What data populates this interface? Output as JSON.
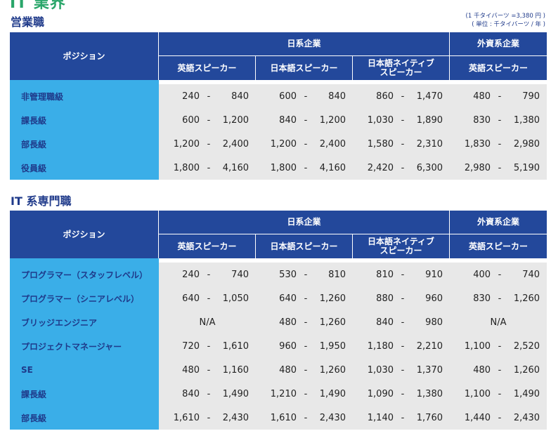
{
  "header": {
    "top_title": "IT 業界",
    "sales_title": "営業職",
    "it_title": "IT 系専門職",
    "note_line1": "(1 千タイバーツ =3,380 円 )",
    "note_line2": "( 単位 : 千タイバーツ / 年 )"
  },
  "columns": {
    "position": "ポジション",
    "group_jp": "日系企業",
    "group_foreign": "外資系企業",
    "sub1": "英語スピーカー",
    "sub2": "日本語スピーカー",
    "sub3_line1": "日本語ネイティブ",
    "sub3_line2": "スピーカー",
    "sub4": "英語スピーカー",
    "dash": "-"
  },
  "sales": {
    "rows": [
      {
        "label": "非管理職級",
        "c1": [
          "240",
          "840"
        ],
        "c2": [
          "600",
          "840"
        ],
        "c3": [
          "860",
          "1,470"
        ],
        "c4": [
          "480",
          "790"
        ]
      },
      {
        "label": "課長級",
        "c1": [
          "600",
          "1,200"
        ],
        "c2": [
          "840",
          "1,200"
        ],
        "c3": [
          "1,030",
          "1,890"
        ],
        "c4": [
          "830",
          "1,380"
        ]
      },
      {
        "label": "部長級",
        "c1": [
          "1,200",
          "2,400"
        ],
        "c2": [
          "1,200",
          "2,400"
        ],
        "c3": [
          "1,580",
          "2,310"
        ],
        "c4": [
          "1,830",
          "2,980"
        ]
      },
      {
        "label": "役員級",
        "c1": [
          "1,800",
          "4,160"
        ],
        "c2": [
          "1,800",
          "4,160"
        ],
        "c3": [
          "2,420",
          "6,300"
        ],
        "c4": [
          "2,980",
          "5,190"
        ]
      }
    ]
  },
  "it": {
    "rows": [
      {
        "label": "プログラマー（スタッフレベル）",
        "c1": [
          "240",
          "740"
        ],
        "c2": [
          "530",
          "810"
        ],
        "c3": [
          "810",
          "910"
        ],
        "c4": [
          "400",
          "740"
        ]
      },
      {
        "label": "プログラマー（シニアレベル）",
        "c1": [
          "640",
          "1,050"
        ],
        "c2": [
          "640",
          "1,260"
        ],
        "c3": [
          "880",
          "960"
        ],
        "c4": [
          "830",
          "1,260"
        ]
      },
      {
        "label": "ブリッジエンジニア",
        "c1_na": "N/A",
        "c2": [
          "480",
          "1,260"
        ],
        "c3": [
          "840",
          "980"
        ],
        "c4_na": "N/A"
      },
      {
        "label": "プロジェクトマネージャー",
        "c1": [
          "720",
          "1,610"
        ],
        "c2": [
          "960",
          "1,950"
        ],
        "c3": [
          "1,180",
          "2,210"
        ],
        "c4": [
          "1,100",
          "2,520"
        ]
      },
      {
        "label": "SE",
        "c1": [
          "480",
          "1,160"
        ],
        "c2": [
          "480",
          "1,260"
        ],
        "c3": [
          "1,030",
          "1,370"
        ],
        "c4": [
          "480",
          "1,260"
        ]
      },
      {
        "label": "課長級",
        "c1": [
          "840",
          "1,490"
        ],
        "c2": [
          "1,210",
          "1,490"
        ],
        "c3": [
          "1,090",
          "1,380"
        ],
        "c4": [
          "1,100",
          "1,490"
        ]
      },
      {
        "label": "部長級",
        "c1": [
          "1,610",
          "2,430"
        ],
        "c2": [
          "1,610",
          "2,430"
        ],
        "c3": [
          "1,140",
          "1,760"
        ],
        "c4": [
          "1,440",
          "2,430"
        ]
      }
    ]
  }
}
